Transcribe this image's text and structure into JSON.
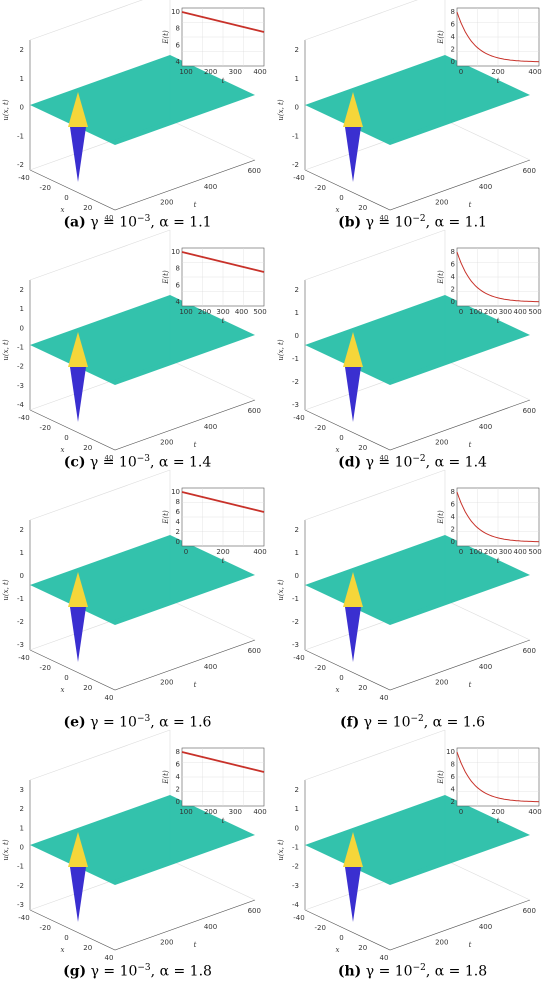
{
  "panels": [
    {
      "label": "(a)",
      "caption_rest": " γ = 10",
      "exp": "−3",
      "alpha": ", α = 1.1",
      "zticks": [
        "2",
        "1",
        "0",
        "-1",
        "-2"
      ],
      "zlabel": "u(x, t)",
      "xticks": [
        "-40",
        "-20",
        "0",
        "20",
        "40"
      ],
      "xlabel": "x",
      "tticks": [
        "200",
        "400",
        "600"
      ],
      "tlabel": "t",
      "inset": {
        "ylabel": "E(t)",
        "yticks": [
          "10",
          "8",
          "6",
          "4"
        ],
        "xticks": [
          "100",
          "200",
          "300",
          "400"
        ],
        "xlabel": "t"
      }
    },
    {
      "label": "(b)",
      "caption_rest": " γ = 10",
      "exp": "−2",
      "alpha": ", α = 1.1",
      "zticks": [
        "2",
        "1",
        "0",
        "-1",
        "-2"
      ],
      "zlabel": "u(x, t)",
      "xticks": [
        "-40",
        "-20",
        "0",
        "20",
        "40"
      ],
      "xlabel": "x",
      "tticks": [
        "200",
        "400",
        "600"
      ],
      "tlabel": "t",
      "inset": {
        "ylabel": "E(t)",
        "yticks": [
          "8",
          "6",
          "4",
          "2",
          "0"
        ],
        "xticks": [
          "0",
          "200",
          "400"
        ],
        "xlabel": "t"
      }
    },
    {
      "label": "(c)",
      "caption_rest": " γ = 10",
      "exp": "−3",
      "alpha": ", α = 1.4",
      "zticks": [
        "2",
        "1",
        "0",
        "-1",
        "-2",
        "-3",
        "-4"
      ],
      "zlabel": "u(x, t)",
      "xticks": [
        "-40",
        "-20",
        "0",
        "20",
        "40"
      ],
      "xlabel": "x",
      "tticks": [
        "200",
        "400",
        "600"
      ],
      "tlabel": "t",
      "inset": {
        "ylabel": "E(t)",
        "yticks": [
          "10",
          "8",
          "6",
          "4"
        ],
        "xticks": [
          "100",
          "200",
          "300",
          "400",
          "500"
        ],
        "xlabel": "t"
      }
    },
    {
      "label": "(d)",
      "caption_rest": " γ = 10",
      "exp": "−2",
      "alpha": ", α = 1.4",
      "zticks": [
        "2",
        "1",
        "0",
        "-1",
        "-2",
        "-3"
      ],
      "zlabel": "u(x, t)",
      "xticks": [
        "-40",
        "-20",
        "0",
        "20",
        "40"
      ],
      "xlabel": "x",
      "tticks": [
        "200",
        "400",
        "600"
      ],
      "tlabel": "t",
      "inset": {
        "ylabel": "E(t)",
        "yticks": [
          "8",
          "6",
          "4",
          "2",
          "0"
        ],
        "xticks": [
          "0",
          "100",
          "200",
          "300",
          "400",
          "500"
        ],
        "xlabel": "t"
      }
    },
    {
      "label": "(e)",
      "caption_rest": " γ = 10",
      "exp": "−3",
      "alpha": ", α = 1.6",
      "zticks": [
        "2",
        "1",
        "0",
        "-1",
        "-2",
        "-3"
      ],
      "zlabel": "u(x, t)",
      "xticks": [
        "-40",
        "-20",
        "0",
        "20",
        "40"
      ],
      "xlabel": "x",
      "tticks": [
        "200",
        "400",
        "600"
      ],
      "tlabel": "t",
      "inset": {
        "ylabel": "E(t)",
        "yticks": [
          "10",
          "8",
          "6",
          "4",
          "2",
          "0"
        ],
        "xticks": [
          "0",
          "200",
          "400"
        ],
        "xlabel": "t"
      }
    },
    {
      "label": "(f)",
      "caption_rest": " γ = 10",
      "exp": "−2",
      "alpha": ", α = 1.6",
      "zticks": [
        "2",
        "1",
        "0",
        "-1",
        "-2",
        "-3"
      ],
      "zlabel": "u(x, t)",
      "xticks": [
        "-40",
        "-20",
        "0",
        "20",
        "40"
      ],
      "xlabel": "x",
      "tticks": [
        "200",
        "400",
        "600"
      ],
      "tlabel": "t",
      "inset": {
        "ylabel": "E(t)",
        "yticks": [
          "8",
          "6",
          "4",
          "2",
          "0"
        ],
        "xticks": [
          "0",
          "100",
          "200",
          "300",
          "400",
          "500"
        ],
        "xlabel": "t"
      }
    },
    {
      "label": "(g)",
      "caption_rest": " γ = 10",
      "exp": "−3",
      "alpha": ", α = 1.8",
      "zticks": [
        "3",
        "2",
        "1",
        "0",
        "-1",
        "-2",
        "-3"
      ],
      "zlabel": "u(x, t)",
      "xticks": [
        "-40",
        "-20",
        "0",
        "20",
        "40"
      ],
      "xlabel": "x",
      "tticks": [
        "200",
        "400",
        "600"
      ],
      "tlabel": "t",
      "inset": {
        "ylabel": "E(t)",
        "yticks": [
          "8",
          "6",
          "4",
          "2",
          "0"
        ],
        "xticks": [
          "100",
          "200",
          "300",
          "400"
        ],
        "xlabel": "t"
      }
    },
    {
      "label": "(h)",
      "caption_rest": " γ = 10",
      "exp": "−2",
      "alpha": ", α = 1.8",
      "zticks": [
        "2",
        "1",
        "0",
        "-1",
        "-2",
        "-3",
        "-4"
      ],
      "zlabel": "u(x, t)",
      "xticks": [
        "-40",
        "-20",
        "0",
        "20",
        "40"
      ],
      "xlabel": "x",
      "tticks": [
        "200",
        "400",
        "600"
      ],
      "tlabel": "t",
      "inset": {
        "ylabel": "E(t)",
        "yticks": [
          "10",
          "8",
          "6",
          "4",
          "2"
        ],
        "xticks": [
          "0",
          "200",
          "400"
        ],
        "xlabel": "t"
      }
    }
  ],
  "colors": {
    "surface_flat": "#28bfa8",
    "surface_high": "#f5d63a",
    "surface_low": "#3a2fd0",
    "decay_line": "#c8322a",
    "axis": "#555555",
    "grid": "#dddddd"
  }
}
